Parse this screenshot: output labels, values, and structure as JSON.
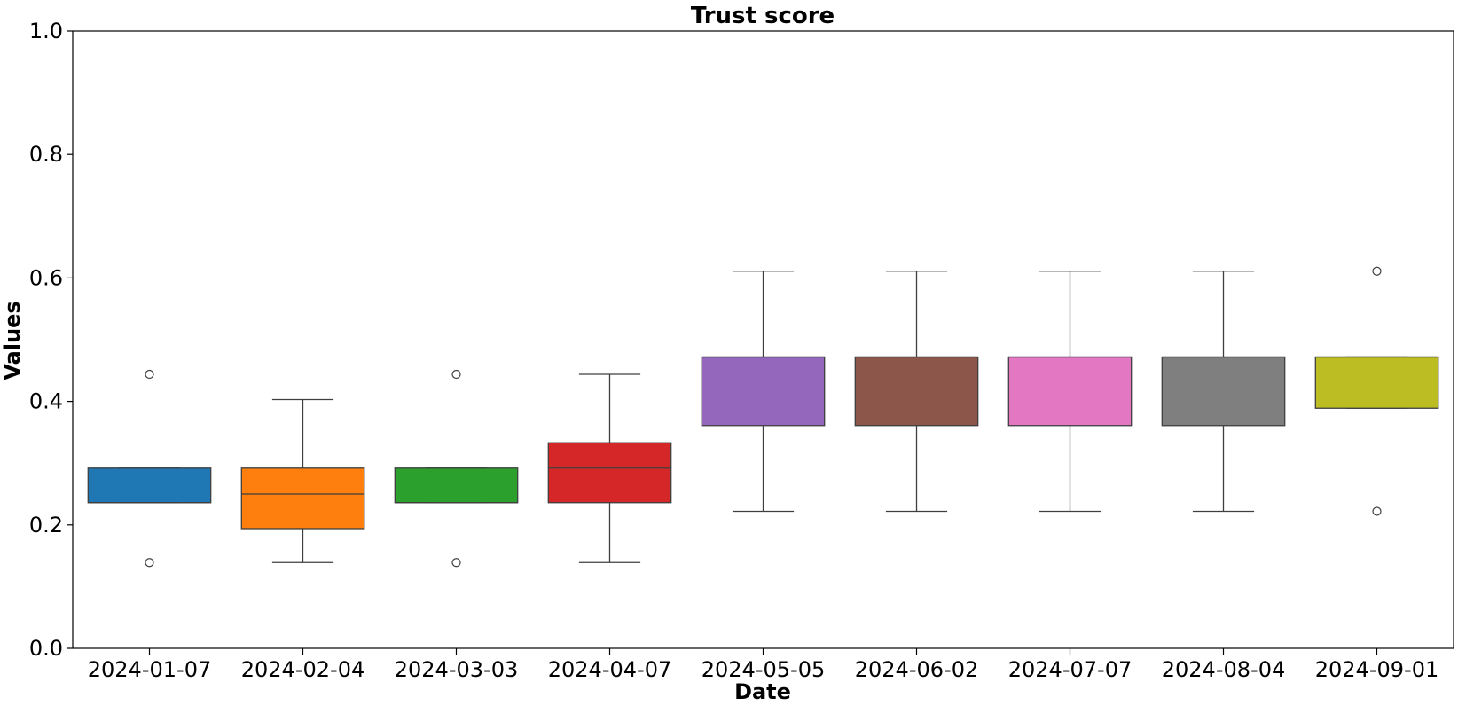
{
  "chart_data": {
    "type": "box",
    "title": "Trust score",
    "xlabel": "Date",
    "ylabel": "Values",
    "ylim": [
      0.0,
      1.0
    ],
    "yticks": [
      0.0,
      0.2,
      0.4,
      0.6,
      0.8,
      1.0
    ],
    "grid": false,
    "legend": "none",
    "categories": [
      "2024-01-07",
      "2024-02-04",
      "2024-03-03",
      "2024-04-07",
      "2024-05-05",
      "2024-06-02",
      "2024-07-07",
      "2024-08-04",
      "2024-09-01"
    ],
    "boxes": [
      {
        "category": "2024-01-07",
        "color": "#1f77b4",
        "whisker_low": 0.236,
        "q1": 0.236,
        "median": 0.236,
        "q3": 0.292,
        "whisker_high": 0.292,
        "outliers": [
          0.444,
          0.139
        ]
      },
      {
        "category": "2024-02-04",
        "color": "#ff7f0e",
        "whisker_low": 0.139,
        "q1": 0.194,
        "median": 0.25,
        "q3": 0.292,
        "whisker_high": 0.403,
        "outliers": []
      },
      {
        "category": "2024-03-03",
        "color": "#2ca02c",
        "whisker_low": 0.236,
        "q1": 0.236,
        "median": 0.236,
        "q3": 0.292,
        "whisker_high": 0.292,
        "outliers": [
          0.444,
          0.139
        ]
      },
      {
        "category": "2024-04-07",
        "color": "#d62728",
        "whisker_low": 0.139,
        "q1": 0.236,
        "median": 0.292,
        "q3": 0.333,
        "whisker_high": 0.444,
        "outliers": []
      },
      {
        "category": "2024-05-05",
        "color": "#9467bd",
        "whisker_low": 0.222,
        "q1": 0.361,
        "median": 0.472,
        "q3": 0.472,
        "whisker_high": 0.611,
        "outliers": []
      },
      {
        "category": "2024-06-02",
        "color": "#8c564b",
        "whisker_low": 0.222,
        "q1": 0.361,
        "median": 0.472,
        "q3": 0.472,
        "whisker_high": 0.611,
        "outliers": []
      },
      {
        "category": "2024-07-07",
        "color": "#e377c2",
        "whisker_low": 0.222,
        "q1": 0.361,
        "median": 0.472,
        "q3": 0.472,
        "whisker_high": 0.611,
        "outliers": []
      },
      {
        "category": "2024-08-04",
        "color": "#7f7f7f",
        "whisker_low": 0.222,
        "q1": 0.361,
        "median": 0.472,
        "q3": 0.472,
        "whisker_high": 0.611,
        "outliers": []
      },
      {
        "category": "2024-09-01",
        "color": "#bcbd22",
        "whisker_low": 0.389,
        "q1": 0.389,
        "median": 0.472,
        "q3": 0.472,
        "whisker_high": 0.472,
        "outliers": [
          0.611,
          0.222
        ]
      }
    ]
  }
}
